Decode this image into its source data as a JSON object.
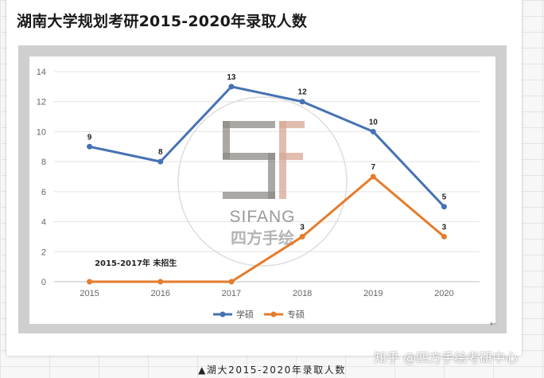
{
  "page": {
    "title": "湖南大学规划考研2015-2020年录取人数",
    "caption": "▲湖大2015-2020年录取人数",
    "watermark_text": "知乎 @四方手绘考研中心",
    "logo_text": "SIFANG",
    "logo_text_cn": "四方手绘"
  },
  "chart_data": {
    "type": "line",
    "title": "",
    "xlabel": "",
    "ylabel": "",
    "categories": [
      "2015",
      "2016",
      "2017",
      "2018",
      "2019",
      "2020"
    ],
    "ylim": [
      0,
      14
    ],
    "yticks": [
      0,
      2,
      4,
      6,
      8,
      10,
      12,
      14
    ],
    "grid": true,
    "legend_position": "bottom",
    "series": [
      {
        "name": "学硕",
        "values": [
          9,
          8,
          13,
          12,
          10,
          5
        ],
        "labels": [
          "9",
          "8",
          "13",
          "12",
          "10",
          "5"
        ],
        "color": "#4672b4"
      },
      {
        "name": "专硕",
        "values": [
          0,
          0,
          0,
          3,
          7,
          3
        ],
        "labels": [
          "",
          "",
          "",
          "3",
          "7",
          "3"
        ],
        "color": "#e57c2c"
      }
    ],
    "annotation": "2015-2017年 未招生"
  }
}
